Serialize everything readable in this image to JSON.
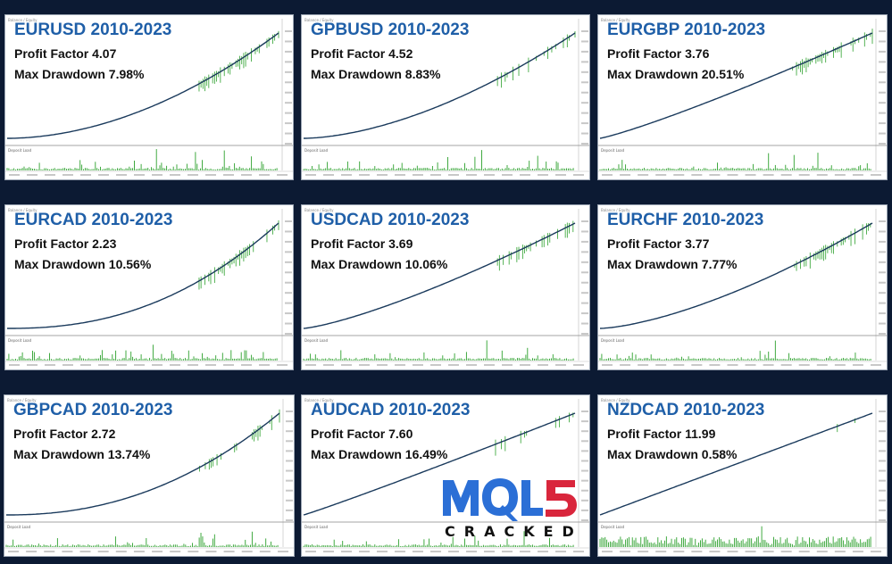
{
  "colors": {
    "background": "#0c1a33",
    "title": "#1f5fa8",
    "balance_line": "#1a3a5c",
    "equity": "#2ca02c",
    "deposit_load": "#2ca02c",
    "logo_blue": "#2b6fd6",
    "logo_red": "#d9263c"
  },
  "watermark": {
    "logo_text": "MQL5",
    "caption": "CRACKED"
  },
  "chart_data": [
    {
      "type": "line",
      "pair": "EURUSD",
      "title": "EURUSD 2010-2023",
      "profit_factor": "Profit Factor 4.07",
      "max_drawdown": "Max Drawdown 7.98%",
      "subpanel_label": "Deposit Load"
    },
    {
      "type": "line",
      "pair": "GPBUSD",
      "title": "GPBUSD 2010-2023",
      "profit_factor": "Profit Factor 4.52",
      "max_drawdown": "Max Drawdown 8.83%",
      "subpanel_label": "Deposit Load"
    },
    {
      "type": "line",
      "pair": "EURGBP",
      "title": "EURGBP 2010-2023",
      "profit_factor": "Profit Factor 3.76",
      "max_drawdown": "Max Drawdown 20.51%",
      "subpanel_label": "Deposit Load"
    },
    {
      "type": "line",
      "pair": "EURCAD",
      "title": "EURCAD 2010-2023",
      "profit_factor": "Profit Factor 2.23",
      "max_drawdown": "Max Drawdown 10.56%",
      "subpanel_label": "Deposit Load"
    },
    {
      "type": "line",
      "pair": "USDCAD",
      "title": "USDCAD 2010-2023",
      "profit_factor": "Profit Factor 3.69",
      "max_drawdown": "Max Drawdown 10.06%",
      "subpanel_label": "Deposit Load"
    },
    {
      "type": "line",
      "pair": "EURCHF",
      "title": "EURCHF 2010-2023",
      "profit_factor": "Profit Factor 3.77",
      "max_drawdown": "Max Drawdown 7.77%",
      "subpanel_label": "Deposit Load"
    },
    {
      "type": "line",
      "pair": "GBPCAD",
      "title": "GBPCAD 2010-2023",
      "profit_factor": "Profit Factor 2.72",
      "max_drawdown": "Max Drawdown 13.74%",
      "subpanel_label": "Deposit Load"
    },
    {
      "type": "line",
      "pair": "AUDCAD",
      "title": "AUDCAD 2010-2023",
      "profit_factor": "Profit Factor 7.60",
      "max_drawdown": "Max Drawdown 16.49%",
      "subpanel_label": "Deposit Load"
    },
    {
      "type": "line",
      "pair": "NZDCAD",
      "title": "NZDCAD 2010-2023",
      "profit_factor": "Profit Factor 11.99",
      "max_drawdown": "Max Drawdown 0.58%",
      "subpanel_label": "Deposit Load"
    }
  ]
}
